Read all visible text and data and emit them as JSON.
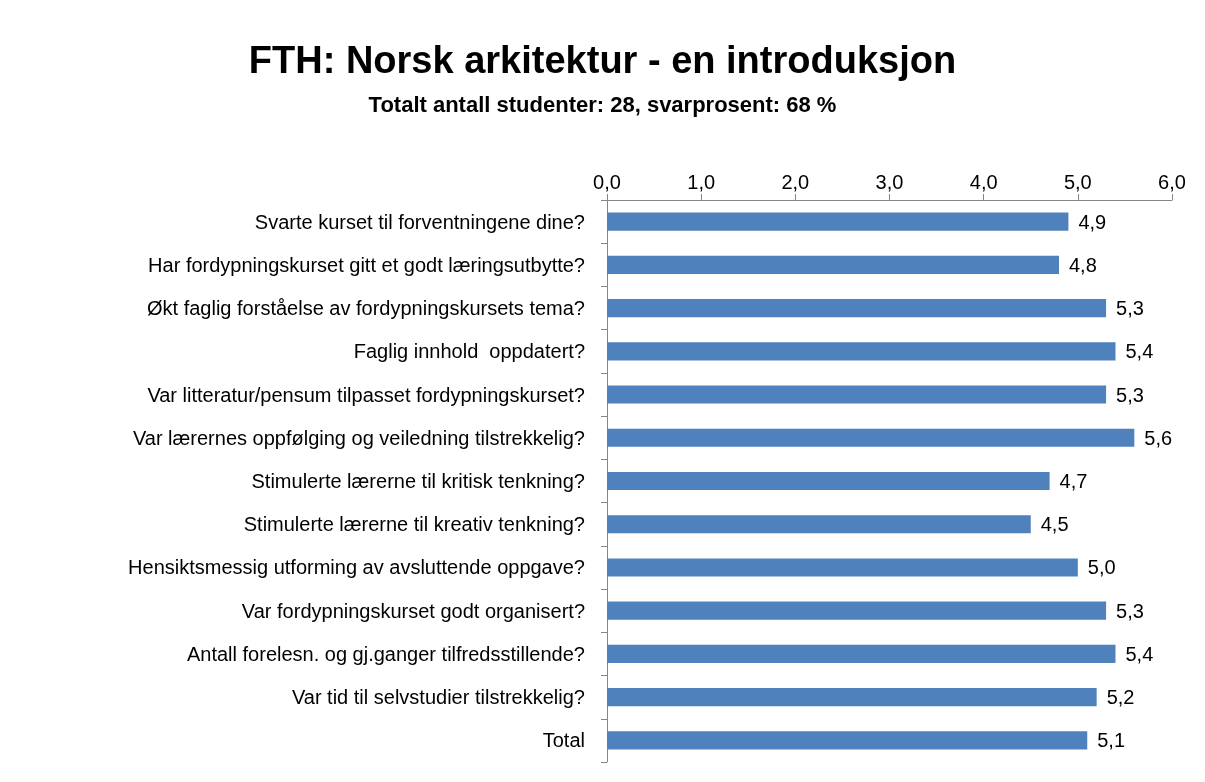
{
  "chart_data": {
    "type": "bar",
    "orientation": "horizontal",
    "title": "FTH: Norsk arkitektur - en introduksjon",
    "subtitle": "Totalt antall studenter: 28, svarprosent: 68 %",
    "categories": [
      "Svarte kurset til forventningene dine?",
      "Har fordypningskurset gitt et godt læringsutbytte?",
      "Økt faglig forståelse av fordypningskursets tema?",
      "Faglig innhold  oppdatert?",
      "Var litteratur/pensum tilpasset fordypningskurset?",
      "Var lærernes oppfølging og veiledning tilstrekkelig?",
      "Stimulerte lærerne til kritisk tenkning?",
      "Stimulerte lærerne til kreativ tenkning?",
      "Hensiktsmessig utforming av avsluttende oppgave?",
      "Var fordypningskurset godt organisert?",
      "Antall forelesn. og gj.ganger tilfredsstillende?",
      "Var tid til selvstudier tilstrekkelig?",
      "Total"
    ],
    "values": [
      4.9,
      4.8,
      5.3,
      5.4,
      5.3,
      5.6,
      4.7,
      4.5,
      5.0,
      5.3,
      5.4,
      5.2,
      5.1
    ],
    "value_labels": [
      "4,9",
      "4,8",
      "5,3",
      "5,4",
      "5,3",
      "5,6",
      "4,7",
      "4,5",
      "5,0",
      "5,3",
      "5,4",
      "5,2",
      "5,1"
    ],
    "color": "#4f81bd",
    "xlim": [
      0,
      6
    ],
    "xticks": [
      {
        "value": 0,
        "label": "0,0"
      },
      {
        "value": 1,
        "label": "1,0"
      },
      {
        "value": 2,
        "label": "2,0"
      },
      {
        "value": 3,
        "label": "3,0"
      },
      {
        "value": 4,
        "label": "4,0"
      },
      {
        "value": 5,
        "label": "5,0"
      },
      {
        "value": 6,
        "label": "6,0"
      }
    ],
    "grid": false
  }
}
